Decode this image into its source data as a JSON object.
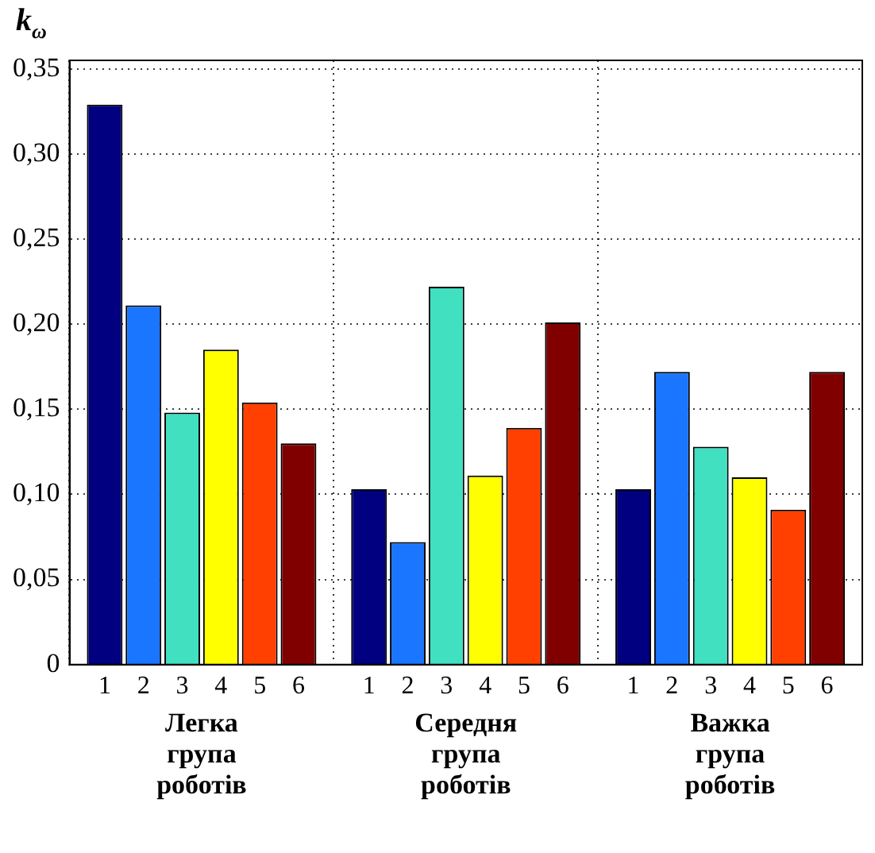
{
  "chart_data": {
    "type": "bar",
    "ylabel": "k$_{ω}$",
    "categories": [
      "Легка група роботів",
      "Середня група роботів",
      "Важка група роботів"
    ],
    "series": [
      {
        "name": "1",
        "color": "#000080",
        "values": [
          0.329,
          0.103,
          0.103
        ]
      },
      {
        "name": "2",
        "color": "#1a75ff",
        "values": [
          0.211,
          0.072,
          0.172
        ]
      },
      {
        "name": "3",
        "color": "#40e0c0",
        "values": [
          0.148,
          0.222,
          0.128
        ]
      },
      {
        "name": "4",
        "color": "#ffff00",
        "values": [
          0.185,
          0.111,
          0.11
        ]
      },
      {
        "name": "5",
        "color": "#ff4000",
        "values": [
          0.154,
          0.139,
          0.091
        ]
      },
      {
        "name": "6",
        "color": "#800000",
        "values": [
          0.13,
          0.201,
          0.172
        ]
      }
    ],
    "ylim": [
      0,
      0.355
    ],
    "yticks": [
      0,
      {
        "value": 0.05,
        "label": "0,05"
      },
      {
        "value": 0.1,
        "label": "0,10"
      },
      {
        "value": 0.15,
        "label": "0,15"
      },
      {
        "value": 0.2,
        "label": "0,20"
      },
      {
        "value": 0.25,
        "label": "0,25"
      },
      {
        "value": 0.3,
        "label": "0,30"
      },
      {
        "value": 0.35,
        "label": "0,35"
      }
    ],
    "grid": true,
    "legend": false
  }
}
